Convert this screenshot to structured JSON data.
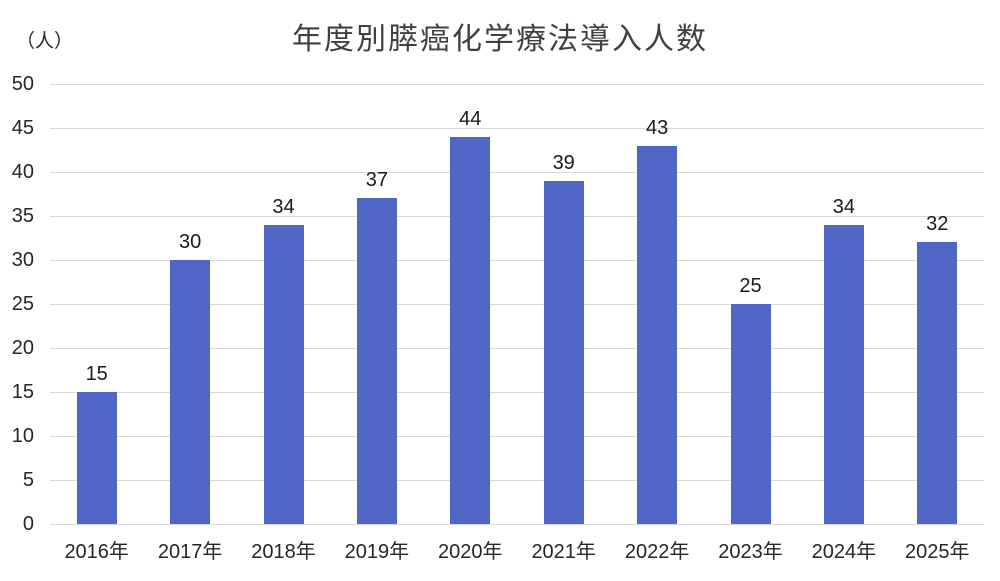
{
  "chart_data": {
    "type": "bar",
    "title": "年度別膵癌化学療法導入人数",
    "unit_label": "（人）",
    "categories": [
      "2016年",
      "2017年",
      "2018年",
      "2019年",
      "2020年",
      "2021年",
      "2022年",
      "2023年",
      "2024年",
      "2025年"
    ],
    "values": [
      15,
      30,
      34,
      37,
      44,
      39,
      43,
      25,
      34,
      32
    ],
    "xlabel": "",
    "ylabel": "（人）",
    "ylim": [
      0,
      50
    ],
    "y_ticks": [
      0,
      5,
      10,
      15,
      20,
      25,
      30,
      35,
      40,
      45,
      50
    ],
    "grid": true,
    "legend": "none",
    "data_labels": true,
    "colors": {
      "bar": "#5066C6",
      "gridline": "#D9D9D9",
      "title_text": "#404040",
      "tick_text": "#262626",
      "data_label_text": "#1A1A1A",
      "background": "#FFFFFF"
    }
  }
}
